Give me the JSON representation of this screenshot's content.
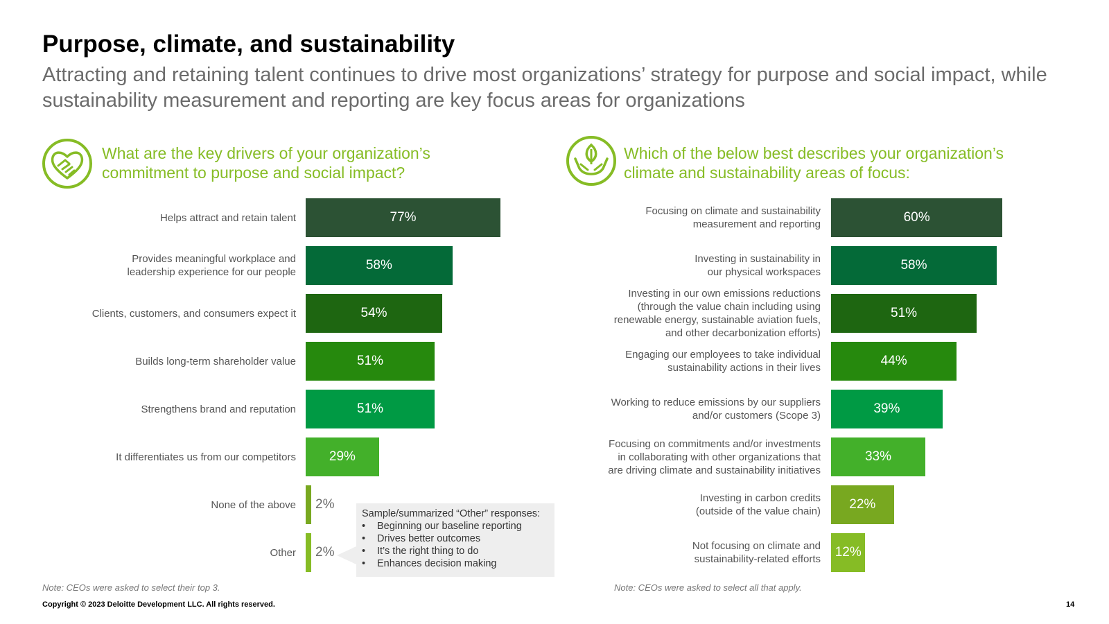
{
  "page": {
    "title": "Purpose, climate, and sustainability",
    "subtitle": "Attracting and retaining talent continues to drive most organizations’ strategy for purpose and social impact, while sustainability measurement and reporting are key focus areas for organizations",
    "copyright": "Copyright © 2023 Deloitte Development LLC. All rights reserved.",
    "page_number": "14"
  },
  "left": {
    "icon": "handshake-heart-icon",
    "question": "What are the key drivers of your organization’s commitment to purpose and social impact?",
    "note": "Note: CEOs were asked to select their top 3.",
    "callout": {
      "heading": "Sample/summarized “Other” responses:",
      "items": [
        "Beginning our baseline reporting",
        "Drives better outcomes",
        "It’s the right thing to do",
        "Enhances decision making"
      ]
    }
  },
  "right": {
    "icon": "leaf-in-hands-icon",
    "question": "Which of the below best describes your organization’s climate and sustainability areas of focus:",
    "note": "Note: CEOs were asked to select all that apply."
  },
  "chart_data": [
    {
      "type": "bar",
      "orientation": "horizontal",
      "title": "What are the key drivers of your organization’s commitment to purpose and social impact?",
      "categories": [
        "Helps attract and retain talent",
        "Provides meaningful workplace and\nleadership experience for our people",
        "Clients, customers, and consumers expect it",
        "Builds long-term shareholder value",
        "Strengthens brand and reputation",
        "It differentiates us from our competitors",
        "None of the above",
        "Other"
      ],
      "values": [
        77,
        58,
        54,
        51,
        51,
        29,
        2,
        2
      ],
      "labels": [
        "77%",
        "58%",
        "54%",
        "51%",
        "51%",
        "29%",
        "2%",
        "2%"
      ],
      "colors": [
        "#2c5234",
        "#046a38",
        "#1e6611",
        "#26890d",
        "#009a44",
        "#43b02a",
        "#78a820",
        "#86bc25"
      ],
      "unit": "%"
    },
    {
      "type": "bar",
      "orientation": "horizontal",
      "title": "Which of the below best describes your organization’s climate and sustainability areas of focus:",
      "categories": [
        "Focusing on climate and sustainability\nmeasurement and reporting",
        "Investing in sustainability in\nour physical workspaces",
        "Investing in our own emissions reductions\n(through the value chain including using\nrenewable energy, sustainable aviation fuels,\nand other decarbonization efforts)",
        "Engaging our employees to take individual\nsustainability actions in their lives",
        "Working to reduce emissions by our suppliers\nand/or customers (Scope 3)",
        "Focusing on commitments and/or investments\nin collaborating with other organizations that\nare driving climate and sustainability initiatives",
        "Investing in carbon credits\n(outside of the value chain)",
        "Not focusing on climate and\nsustainability-related efforts"
      ],
      "values": [
        60,
        58,
        51,
        44,
        39,
        33,
        22,
        12
      ],
      "labels": [
        "60%",
        "58%",
        "51%",
        "44%",
        "39%",
        "33%",
        "22%",
        "12%"
      ],
      "colors": [
        "#2c5234",
        "#046a38",
        "#1e6611",
        "#26890d",
        "#009a44",
        "#43b02a",
        "#78a820",
        "#86bc25"
      ],
      "unit": "%"
    }
  ]
}
